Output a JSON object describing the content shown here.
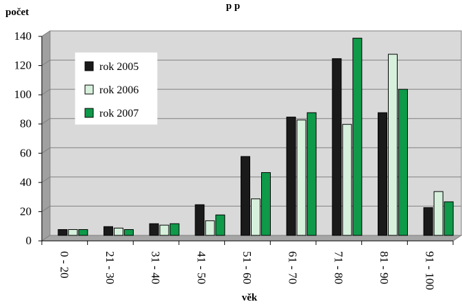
{
  "chart_data": {
    "type": "bar",
    "title": "p p",
    "ylabel": "počet",
    "xlabel": "věk",
    "categories": [
      "0 - 20",
      "21 - 30",
      "31 - 40",
      "41 - 50",
      "51 - 60",
      "61 - 70",
      "71 - 80",
      "81 - 90",
      "91 - 100"
    ],
    "series": [
      {
        "name": "rok 2005",
        "color": "#1a1a1a",
        "values": [
          4,
          6,
          8,
          21,
          54,
          81,
          121,
          84,
          19
        ]
      },
      {
        "name": "rok 2006",
        "color": "#d6f0dc",
        "values": [
          4,
          5,
          7,
          10,
          25,
          79,
          76,
          124,
          30
        ]
      },
      {
        "name": "rok 2007",
        "color": "#0f9a4a",
        "values": [
          4,
          4,
          8,
          14,
          43,
          84,
          135,
          100,
          23
        ]
      }
    ],
    "ylim": [
      0,
      140
    ],
    "yticks": [
      0,
      20,
      40,
      60,
      80,
      100,
      120,
      140
    ],
    "grid": true,
    "legend_position": "top-left",
    "colors": {
      "plot_wall": "#d9d9d9",
      "floor": "#a6a6a6",
      "gridline": "#808080"
    }
  }
}
